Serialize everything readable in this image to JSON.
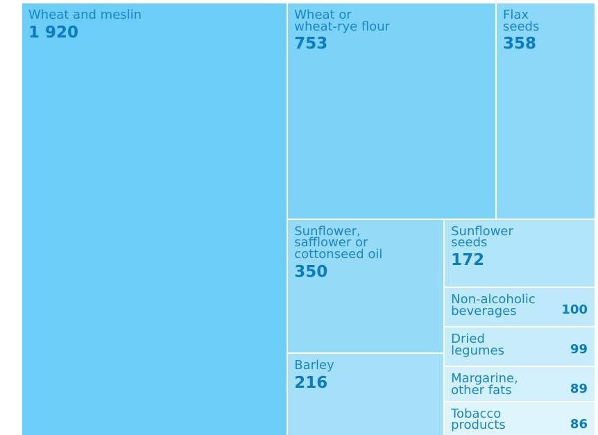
{
  "chart_data": {
    "type": "treemap",
    "categories": [
      "Wheat and meslin",
      "Wheat or\nwheat-rye flour",
      "Flax\nseeds",
      "Sunflower,\nsafflower or\ncottonseed oil",
      "Barley",
      "Sunflower\nseeds",
      "Non-alcoholic\nbeverages",
      "Dried\nlegumes",
      "Margarine,\nother fats",
      "Tobacco\nproducts"
    ],
    "values": [
      1920,
      753,
      358,
      350,
      216,
      172,
      100,
      99,
      89,
      86
    ],
    "value_labels": [
      "1 920",
      "753",
      "358",
      "350",
      "216",
      "172",
      "100",
      "99",
      "89",
      "86"
    ],
    "colors": [
      "#6ccef6",
      "#7bd3f7",
      "#8bd8f8",
      "#95dbf8",
      "#a4e0f9",
      "#b1e5fa",
      "#bde9fa",
      "#c7edfb",
      "#d1f0fb",
      "#def5fc"
    ]
  }
}
